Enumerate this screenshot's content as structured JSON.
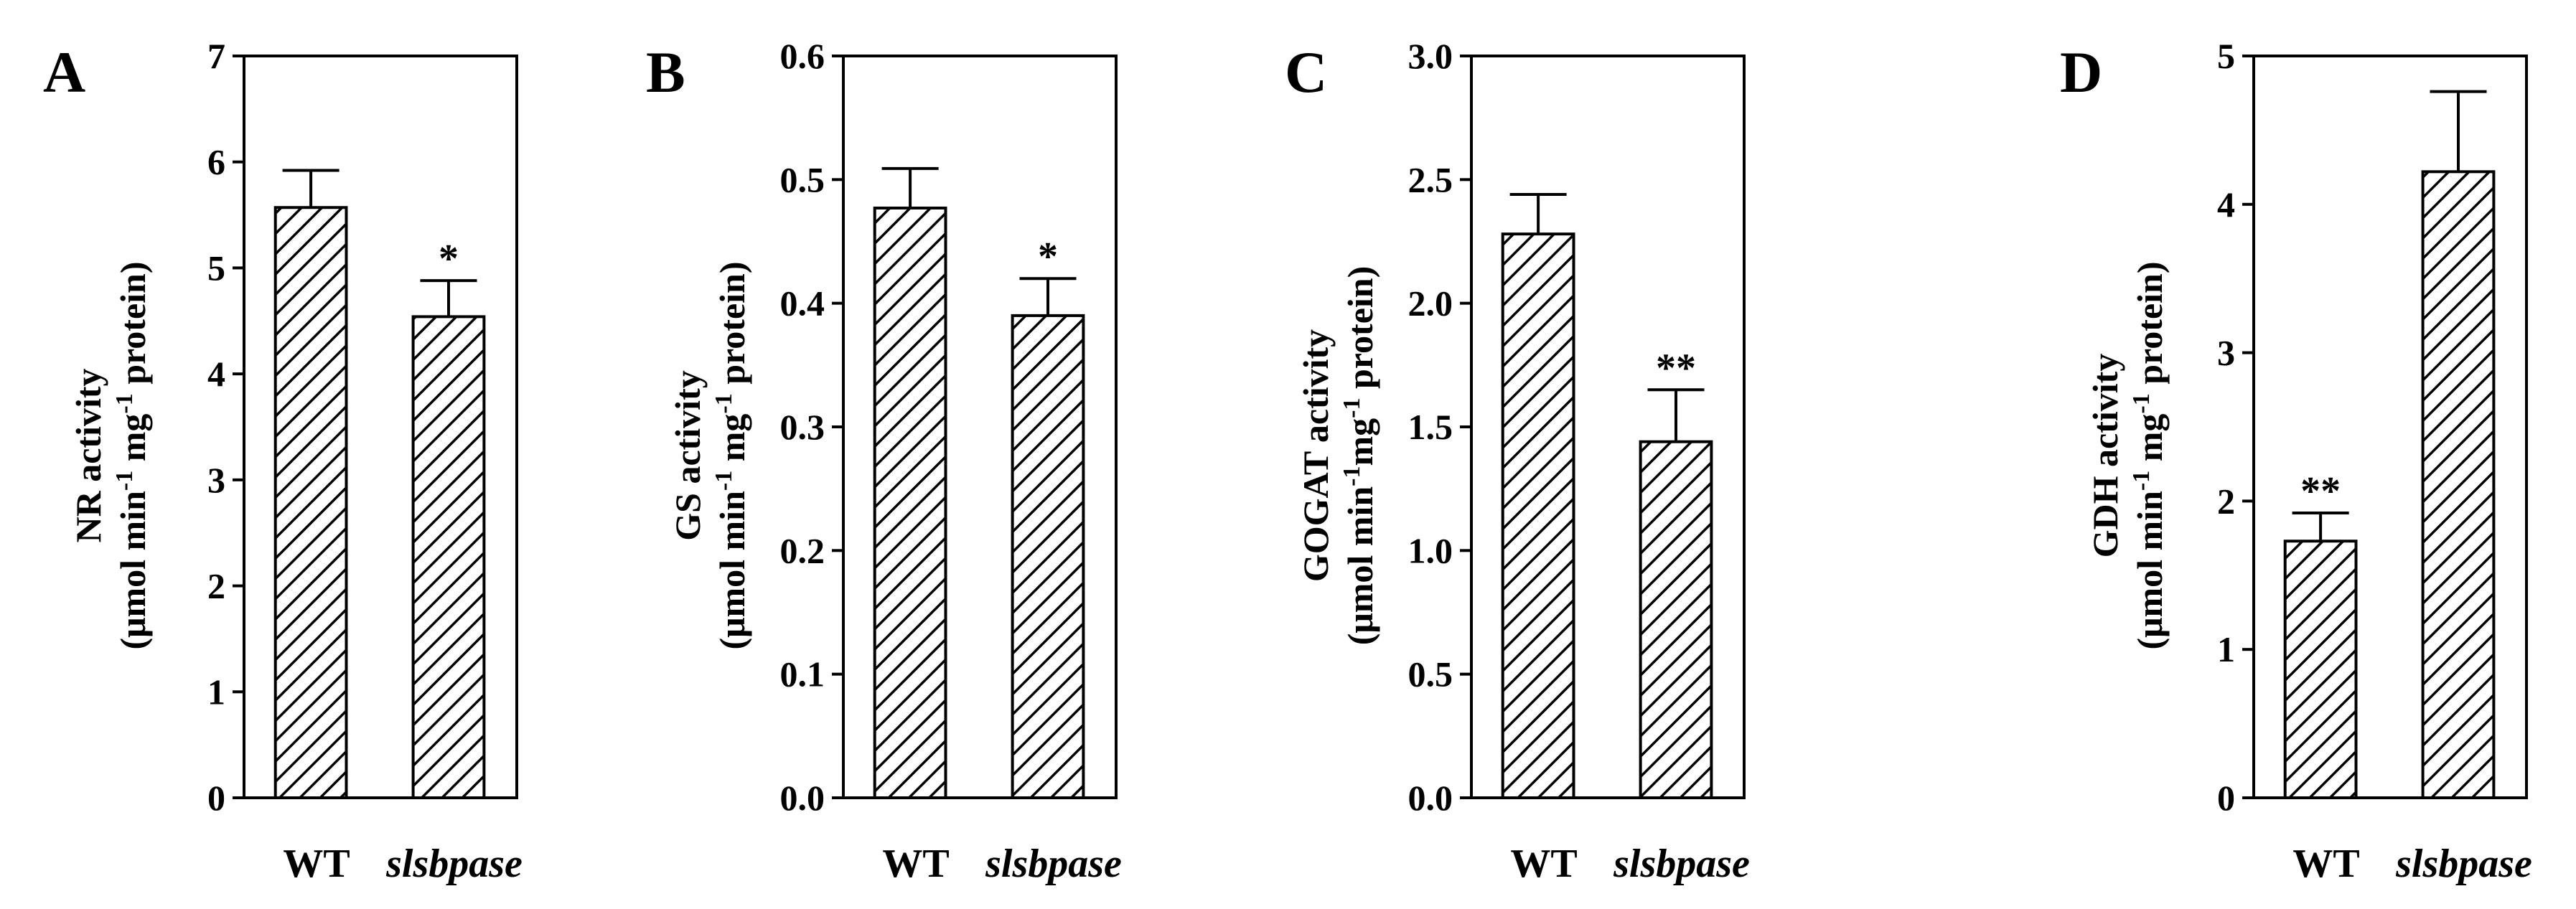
{
  "chart_data": [
    {
      "type": "bar",
      "panel": "A",
      "categories": [
        "WT",
        "slsbpase"
      ],
      "values": [
        5.57,
        4.54
      ],
      "errors": [
        0.35,
        0.34
      ],
      "significance": [
        "",
        "*"
      ],
      "ylim": [
        0,
        7
      ],
      "yticks": [
        0,
        1,
        2,
        3,
        4,
        5,
        6,
        7
      ],
      "ytick_labels": [
        "0",
        "1",
        "2",
        "3",
        "4",
        "5",
        "6",
        "7"
      ],
      "ylabel": {
        "line1": "NR activity",
        "line2_pre": "(μmol min",
        "sup1": "-1",
        "mid": " mg",
        "sup2": "-1",
        "line2_post": " protein)"
      }
    },
    {
      "type": "bar",
      "panel": "B",
      "categories": [
        "WT",
        "slsbpase"
      ],
      "values": [
        0.477,
        0.39
      ],
      "errors": [
        0.032,
        0.03
      ],
      "significance": [
        "",
        "*"
      ],
      "ylim": [
        0,
        0.6
      ],
      "yticks": [
        0,
        0.1,
        0.2,
        0.3,
        0.4,
        0.5,
        0.6
      ],
      "ytick_labels": [
        "0.0",
        "0.1",
        "0.2",
        "0.3",
        "0.4",
        "0.5",
        "0.6"
      ],
      "ylabel": {
        "line1": "GS activity",
        "line2_pre": "(μmol min",
        "sup1": "-1",
        "mid": " mg",
        "sup2": "-1",
        "line2_post": " protein)"
      }
    },
    {
      "type": "bar",
      "panel": "C",
      "categories": [
        "WT",
        "slsbpase"
      ],
      "values": [
        2.28,
        1.44
      ],
      "errors": [
        0.16,
        0.21
      ],
      "significance": [
        "",
        "**"
      ],
      "ylim": [
        0,
        3.0
      ],
      "yticks": [
        0,
        0.5,
        1.0,
        1.5,
        2.0,
        2.5,
        3.0
      ],
      "ytick_labels": [
        "0.0",
        "0.5",
        "1.0",
        "1.5",
        "2.0",
        "2.5",
        "3.0"
      ],
      "ylabel": {
        "line1": "GOGAT activity",
        "line2_pre": "(μmol min",
        "sup1": "-1",
        "mid": "mg",
        "sup2": "-1",
        "line2_post": " protein)"
      }
    },
    {
      "type": "bar",
      "panel": "D",
      "categories": [
        "WT",
        "slsbpase"
      ],
      "values": [
        1.73,
        4.22
      ],
      "errors": [
        0.19,
        0.54
      ],
      "significance": [
        "**",
        ""
      ],
      "ylim": [
        0,
        5
      ],
      "yticks": [
        0,
        1,
        2,
        3,
        4,
        5
      ],
      "ytick_labels": [
        "0",
        "1",
        "2",
        "3",
        "4",
        "5"
      ],
      "ylabel": {
        "line1": "GDH activity",
        "line2_pre": "(μmol min",
        "sup1": "-1",
        "mid": " mg",
        "sup2": "-1",
        "line2_post": " protein)"
      }
    }
  ],
  "colors": {
    "ink": "#000000",
    "background": "#ffffff"
  }
}
